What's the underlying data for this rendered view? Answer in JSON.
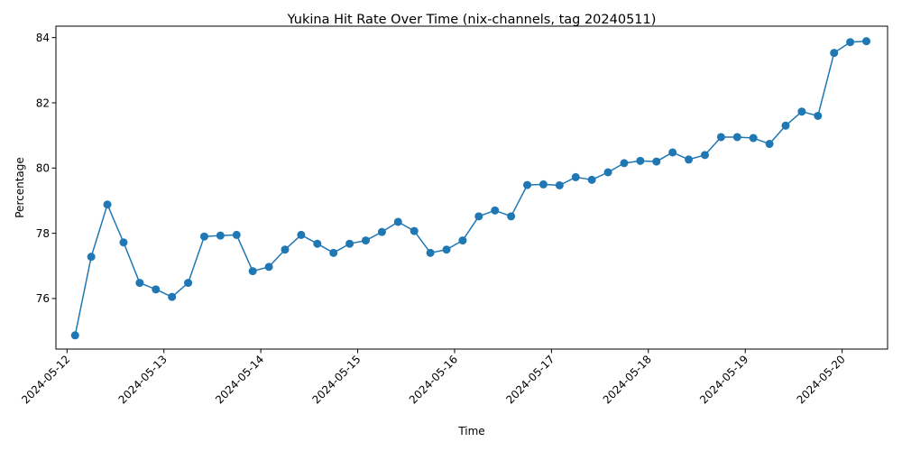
{
  "chart_data": {
    "type": "line",
    "title": "Yukina Hit Rate Over Time (nix-channels, tag 20240511)",
    "xlabel": "Time",
    "ylabel": "Percentage",
    "color": "#1f77b4",
    "grid": false,
    "legend": "none",
    "xlim": [
      "2024-05-11T21:15",
      "2024-05-20T11:15"
    ],
    "ylim": [
      74.45,
      84.35
    ],
    "x_ticks": [
      "2024-05-12",
      "2024-05-13",
      "2024-05-14",
      "2024-05-15",
      "2024-05-16",
      "2024-05-17",
      "2024-05-18",
      "2024-05-19",
      "2024-05-20"
    ],
    "y_ticks": [
      76,
      78,
      80,
      82,
      84
    ],
    "series": [
      {
        "marker": "circle",
        "x": [
          "2024-05-12T02:00",
          "2024-05-12T06:00",
          "2024-05-12T10:00",
          "2024-05-12T14:00",
          "2024-05-12T18:00",
          "2024-05-12T22:00",
          "2024-05-13T02:00",
          "2024-05-13T06:00",
          "2024-05-13T10:00",
          "2024-05-13T14:00",
          "2024-05-13T18:00",
          "2024-05-13T22:00",
          "2024-05-14T02:00",
          "2024-05-14T06:00",
          "2024-05-14T10:00",
          "2024-05-14T14:00",
          "2024-05-14T18:00",
          "2024-05-14T22:00",
          "2024-05-15T02:00",
          "2024-05-15T06:00",
          "2024-05-15T10:00",
          "2024-05-15T14:00",
          "2024-05-15T18:00",
          "2024-05-15T22:00",
          "2024-05-16T02:00",
          "2024-05-16T06:00",
          "2024-05-16T10:00",
          "2024-05-16T14:00",
          "2024-05-16T18:00",
          "2024-05-16T22:00",
          "2024-05-17T02:00",
          "2024-05-17T06:00",
          "2024-05-17T10:00",
          "2024-05-17T14:00",
          "2024-05-17T18:00",
          "2024-05-17T22:00",
          "2024-05-18T02:00",
          "2024-05-18T06:00",
          "2024-05-18T10:00",
          "2024-05-18T14:00",
          "2024-05-18T18:00",
          "2024-05-18T22:00",
          "2024-05-19T02:00",
          "2024-05-19T06:00",
          "2024-05-19T10:00",
          "2024-05-19T14:00",
          "2024-05-19T18:00",
          "2024-05-19T22:00",
          "2024-05-20T02:00",
          "2024-05-20T06:00"
        ],
        "y": [
          74.87,
          77.28,
          78.88,
          77.72,
          76.48,
          76.28,
          76.05,
          76.48,
          77.9,
          77.93,
          77.95,
          76.84,
          76.97,
          77.5,
          77.95,
          77.68,
          77.4,
          77.68,
          77.78,
          78.04,
          78.35,
          78.07,
          77.4,
          77.5,
          77.78,
          78.52,
          78.7,
          78.52,
          79.48,
          79.5,
          79.47,
          79.72,
          79.64,
          79.87,
          80.15,
          80.22,
          80.2,
          80.48,
          80.26,
          80.4,
          80.95,
          80.95,
          80.92,
          80.74,
          81.3,
          81.73,
          81.6,
          83.53,
          83.86,
          83.89
        ]
      }
    ]
  }
}
